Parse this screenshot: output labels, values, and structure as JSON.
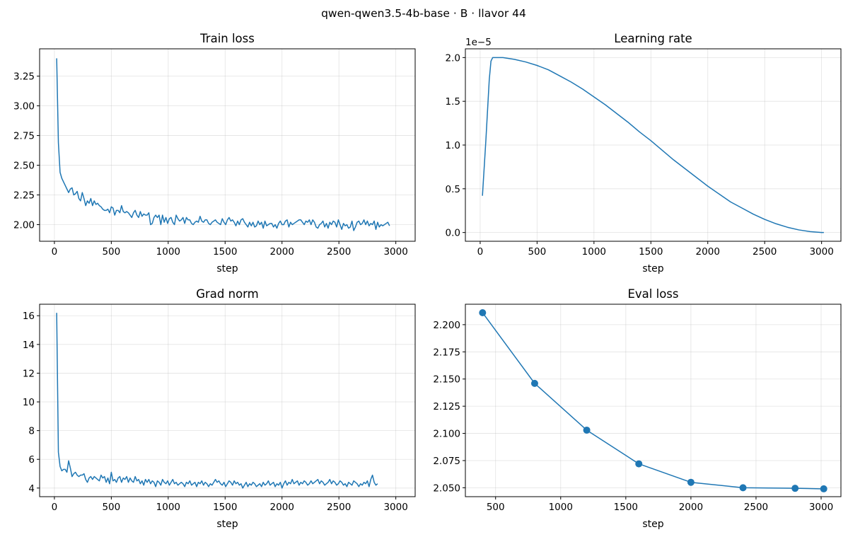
{
  "figure": {
    "suptitle": "qwen-qwen3.5-4b-base · B · llavor 44"
  },
  "chart_data": [
    {
      "type": "line",
      "title": "Train loss",
      "xlabel": "step",
      "ylabel": "",
      "xlim": [
        -130,
        3170
      ],
      "ylim": [
        1.86,
        3.48
      ],
      "xticks": [
        0,
        500,
        1000,
        1500,
        2000,
        2500,
        3000
      ],
      "yticks": [
        2.0,
        2.25,
        2.5,
        2.75,
        3.0,
        3.25
      ],
      "ytick_labels": [
        "2.00",
        "2.25",
        "2.50",
        "2.75",
        "3.00",
        "3.25"
      ],
      "grid": true,
      "series": [
        {
          "color": "#1f77b4",
          "x_start": 20,
          "x_step": 15,
          "values": [
            3.4,
            2.69,
            2.44,
            2.39,
            2.36,
            2.33,
            2.3,
            2.27,
            2.3,
            2.31,
            2.25,
            2.26,
            2.28,
            2.22,
            2.2,
            2.27,
            2.22,
            2.16,
            2.2,
            2.18,
            2.22,
            2.16,
            2.2,
            2.17,
            2.18,
            2.16,
            2.15,
            2.13,
            2.12,
            2.12,
            2.13,
            2.1,
            2.15,
            2.14,
            2.08,
            2.12,
            2.12,
            2.1,
            2.16,
            2.11,
            2.1,
            2.11,
            2.1,
            2.08,
            2.06,
            2.1,
            2.12,
            2.08,
            2.06,
            2.11,
            2.07,
            2.09,
            2.08,
            2.08,
            2.1,
            2.0,
            2.01,
            2.06,
            2.08,
            2.06,
            2.08,
            2.0,
            2.08,
            2.02,
            2.06,
            2.01,
            2.05,
            2.06,
            2.02,
            2.0,
            2.08,
            2.05,
            2.03,
            2.04,
            2.06,
            2.01,
            2.06,
            2.04,
            2.04,
            2.01,
            2.0,
            2.02,
            2.03,
            2.02,
            2.07,
            2.03,
            2.02,
            2.04,
            2.04,
            2.01,
            2.0,
            2.02,
            2.03,
            2.04,
            2.02,
            2.01,
            2.0,
            2.05,
            2.02,
            2.0,
            2.04,
            2.06,
            2.03,
            2.04,
            2.02,
            1.99,
            2.03,
            2.0,
            2.04,
            2.05,
            2.02,
            2.0,
            1.98,
            2.02,
            1.99,
            2.02,
            1.98,
            1.99,
            2.03,
            2.0,
            2.02,
            1.97,
            2.03,
            1.99,
            2.0,
            2.01,
            2.01,
            1.98,
            2.0,
            1.97,
            2.01,
            2.03,
            2.0,
            2.0,
            2.03,
            2.04,
            1.98,
            2.02,
            2.0,
            2.01,
            2.02,
            2.03,
            2.04,
            2.04,
            2.02,
            2.0,
            2.03,
            2.02,
            2.04,
            2.0,
            2.04,
            2.02,
            1.98,
            1.97,
            2.0,
            2.01,
            2.03,
            1.98,
            2.01,
            1.97,
            2.02,
            2.0,
            2.03,
            2.02,
            1.98,
            2.04,
            2.0,
            1.96,
            2.01,
            1.99,
            2.0,
            1.97,
            1.98,
            2.03,
            1.95,
            1.98,
            2.02,
            2.03,
            2.0,
            2.01,
            2.04,
            2.0,
            2.03,
            1.99,
            2.01,
            2.0,
            2.03,
            1.96,
            2.02,
            1.98,
            2.0,
            1.99,
            2.0,
            2.01,
            2.02,
            1.99
          ]
        }
      ]
    },
    {
      "type": "line",
      "title": "Learning rate",
      "xlabel": "step",
      "ylabel": "",
      "exponent_label": "1e−5",
      "xlim": [
        -130,
        3170
      ],
      "ylim": [
        -0.1,
        2.1
      ],
      "xticks": [
        0,
        500,
        1000,
        1500,
        2000,
        2500,
        3000
      ],
      "yticks": [
        0.0,
        0.5,
        1.0,
        1.5,
        2.0
      ],
      "ytick_labels": [
        "0.0",
        "0.5",
        "1.0",
        "1.5",
        "2.0"
      ],
      "grid": true,
      "series": [
        {
          "color": "#1f77b4",
          "x": [
            20,
            50,
            80,
            95,
            110,
            200,
            300,
            400,
            500,
            600,
            700,
            800,
            900,
            1000,
            1100,
            1200,
            1300,
            1400,
            1500,
            1600,
            1700,
            1800,
            1900,
            2000,
            2100,
            2200,
            2300,
            2400,
            2500,
            2600,
            2700,
            2800,
            2900,
            3000,
            3020
          ],
          "values": [
            0.42,
            1.05,
            1.75,
            1.96,
            2.0,
            2.0,
            1.98,
            1.95,
            1.91,
            1.86,
            1.79,
            1.72,
            1.64,
            1.55,
            1.46,
            1.36,
            1.26,
            1.15,
            1.05,
            0.94,
            0.83,
            0.73,
            0.63,
            0.53,
            0.44,
            0.35,
            0.28,
            0.21,
            0.15,
            0.1,
            0.06,
            0.03,
            0.01,
            0.0,
            0.0
          ]
        }
      ]
    },
    {
      "type": "line",
      "title": "Grad norm",
      "xlabel": "step",
      "ylabel": "",
      "xlim": [
        -130,
        3170
      ],
      "ylim": [
        3.4,
        16.8
      ],
      "xticks": [
        0,
        500,
        1000,
        1500,
        2000,
        2500,
        3000
      ],
      "yticks": [
        4,
        6,
        8,
        10,
        12,
        14,
        16
      ],
      "ytick_labels": [
        "4",
        "6",
        "8",
        "10",
        "12",
        "14",
        "16"
      ],
      "grid": true,
      "series": [
        {
          "color": "#1f77b4",
          "x_start": 20,
          "x_step": 15,
          "values": [
            16.2,
            6.5,
            5.5,
            5.2,
            5.3,
            5.3,
            5.1,
            5.9,
            5.4,
            4.8,
            5.0,
            5.1,
            4.9,
            4.8,
            4.9,
            4.9,
            5.0,
            4.6,
            4.4,
            4.7,
            4.8,
            4.6,
            4.8,
            4.7,
            4.6,
            4.5,
            4.9,
            4.7,
            4.8,
            4.4,
            4.7,
            4.3,
            5.1,
            4.5,
            4.6,
            4.4,
            4.7,
            4.8,
            4.4,
            4.7,
            4.6,
            4.8,
            4.4,
            4.7,
            4.5,
            4.4,
            4.8,
            4.5,
            4.6,
            4.3,
            4.5,
            4.2,
            4.6,
            4.4,
            4.6,
            4.3,
            4.5,
            4.4,
            4.1,
            4.5,
            4.4,
            4.2,
            4.6,
            4.4,
            4.3,
            4.5,
            4.2,
            4.4,
            4.6,
            4.3,
            4.4,
            4.2,
            4.3,
            4.4,
            4.3,
            4.1,
            4.4,
            4.3,
            4.5,
            4.2,
            4.3,
            4.4,
            4.1,
            4.4,
            4.3,
            4.5,
            4.2,
            4.4,
            4.3,
            4.1,
            4.3,
            4.2,
            4.4,
            4.6,
            4.4,
            4.5,
            4.3,
            4.2,
            4.4,
            4.1,
            4.3,
            4.5,
            4.4,
            4.2,
            4.5,
            4.3,
            4.4,
            4.2,
            4.3,
            4.0,
            4.2,
            4.4,
            4.1,
            4.3,
            4.2,
            4.4,
            4.3,
            4.1,
            4.2,
            4.3,
            4.1,
            4.4,
            4.2,
            4.3,
            4.5,
            4.2,
            4.3,
            4.4,
            4.1,
            4.3,
            4.2,
            4.4,
            4.0,
            4.3,
            4.5,
            4.2,
            4.4,
            4.3,
            4.6,
            4.3,
            4.4,
            4.5,
            4.2,
            4.4,
            4.3,
            4.5,
            4.4,
            4.2,
            4.3,
            4.5,
            4.3,
            4.4,
            4.5,
            4.6,
            4.3,
            4.5,
            4.4,
            4.2,
            4.3,
            4.4,
            4.6,
            4.3,
            4.5,
            4.4,
            4.2,
            4.3,
            4.5,
            4.4,
            4.2,
            4.3,
            4.1,
            4.4,
            4.3,
            4.2,
            4.5,
            4.4,
            4.3,
            4.1,
            4.3,
            4.2,
            4.4,
            4.3,
            4.5,
            4.1,
            4.6,
            4.9,
            4.4,
            4.2,
            4.3
          ]
        }
      ]
    },
    {
      "type": "line",
      "markers": true,
      "title": "Eval loss",
      "xlabel": "step",
      "ylabel": "",
      "xlim": [
        268,
        3152
      ],
      "ylim": [
        2.0418,
        2.2188
      ],
      "xticks": [
        500,
        1000,
        1500,
        2000,
        2500,
        3000
      ],
      "yticks": [
        2.05,
        2.075,
        2.1,
        2.125,
        2.15,
        2.175,
        2.2
      ],
      "ytick_labels": [
        "2.050",
        "2.075",
        "2.100",
        "2.125",
        "2.150",
        "2.175",
        "2.200"
      ],
      "grid": true,
      "series": [
        {
          "color": "#1f77b4",
          "x": [
            400,
            800,
            1200,
            1600,
            2000,
            2400,
            2800,
            3020
          ],
          "values": [
            2.211,
            2.146,
            2.103,
            2.072,
            2.055,
            2.05,
            2.0495,
            2.049
          ]
        }
      ]
    }
  ]
}
